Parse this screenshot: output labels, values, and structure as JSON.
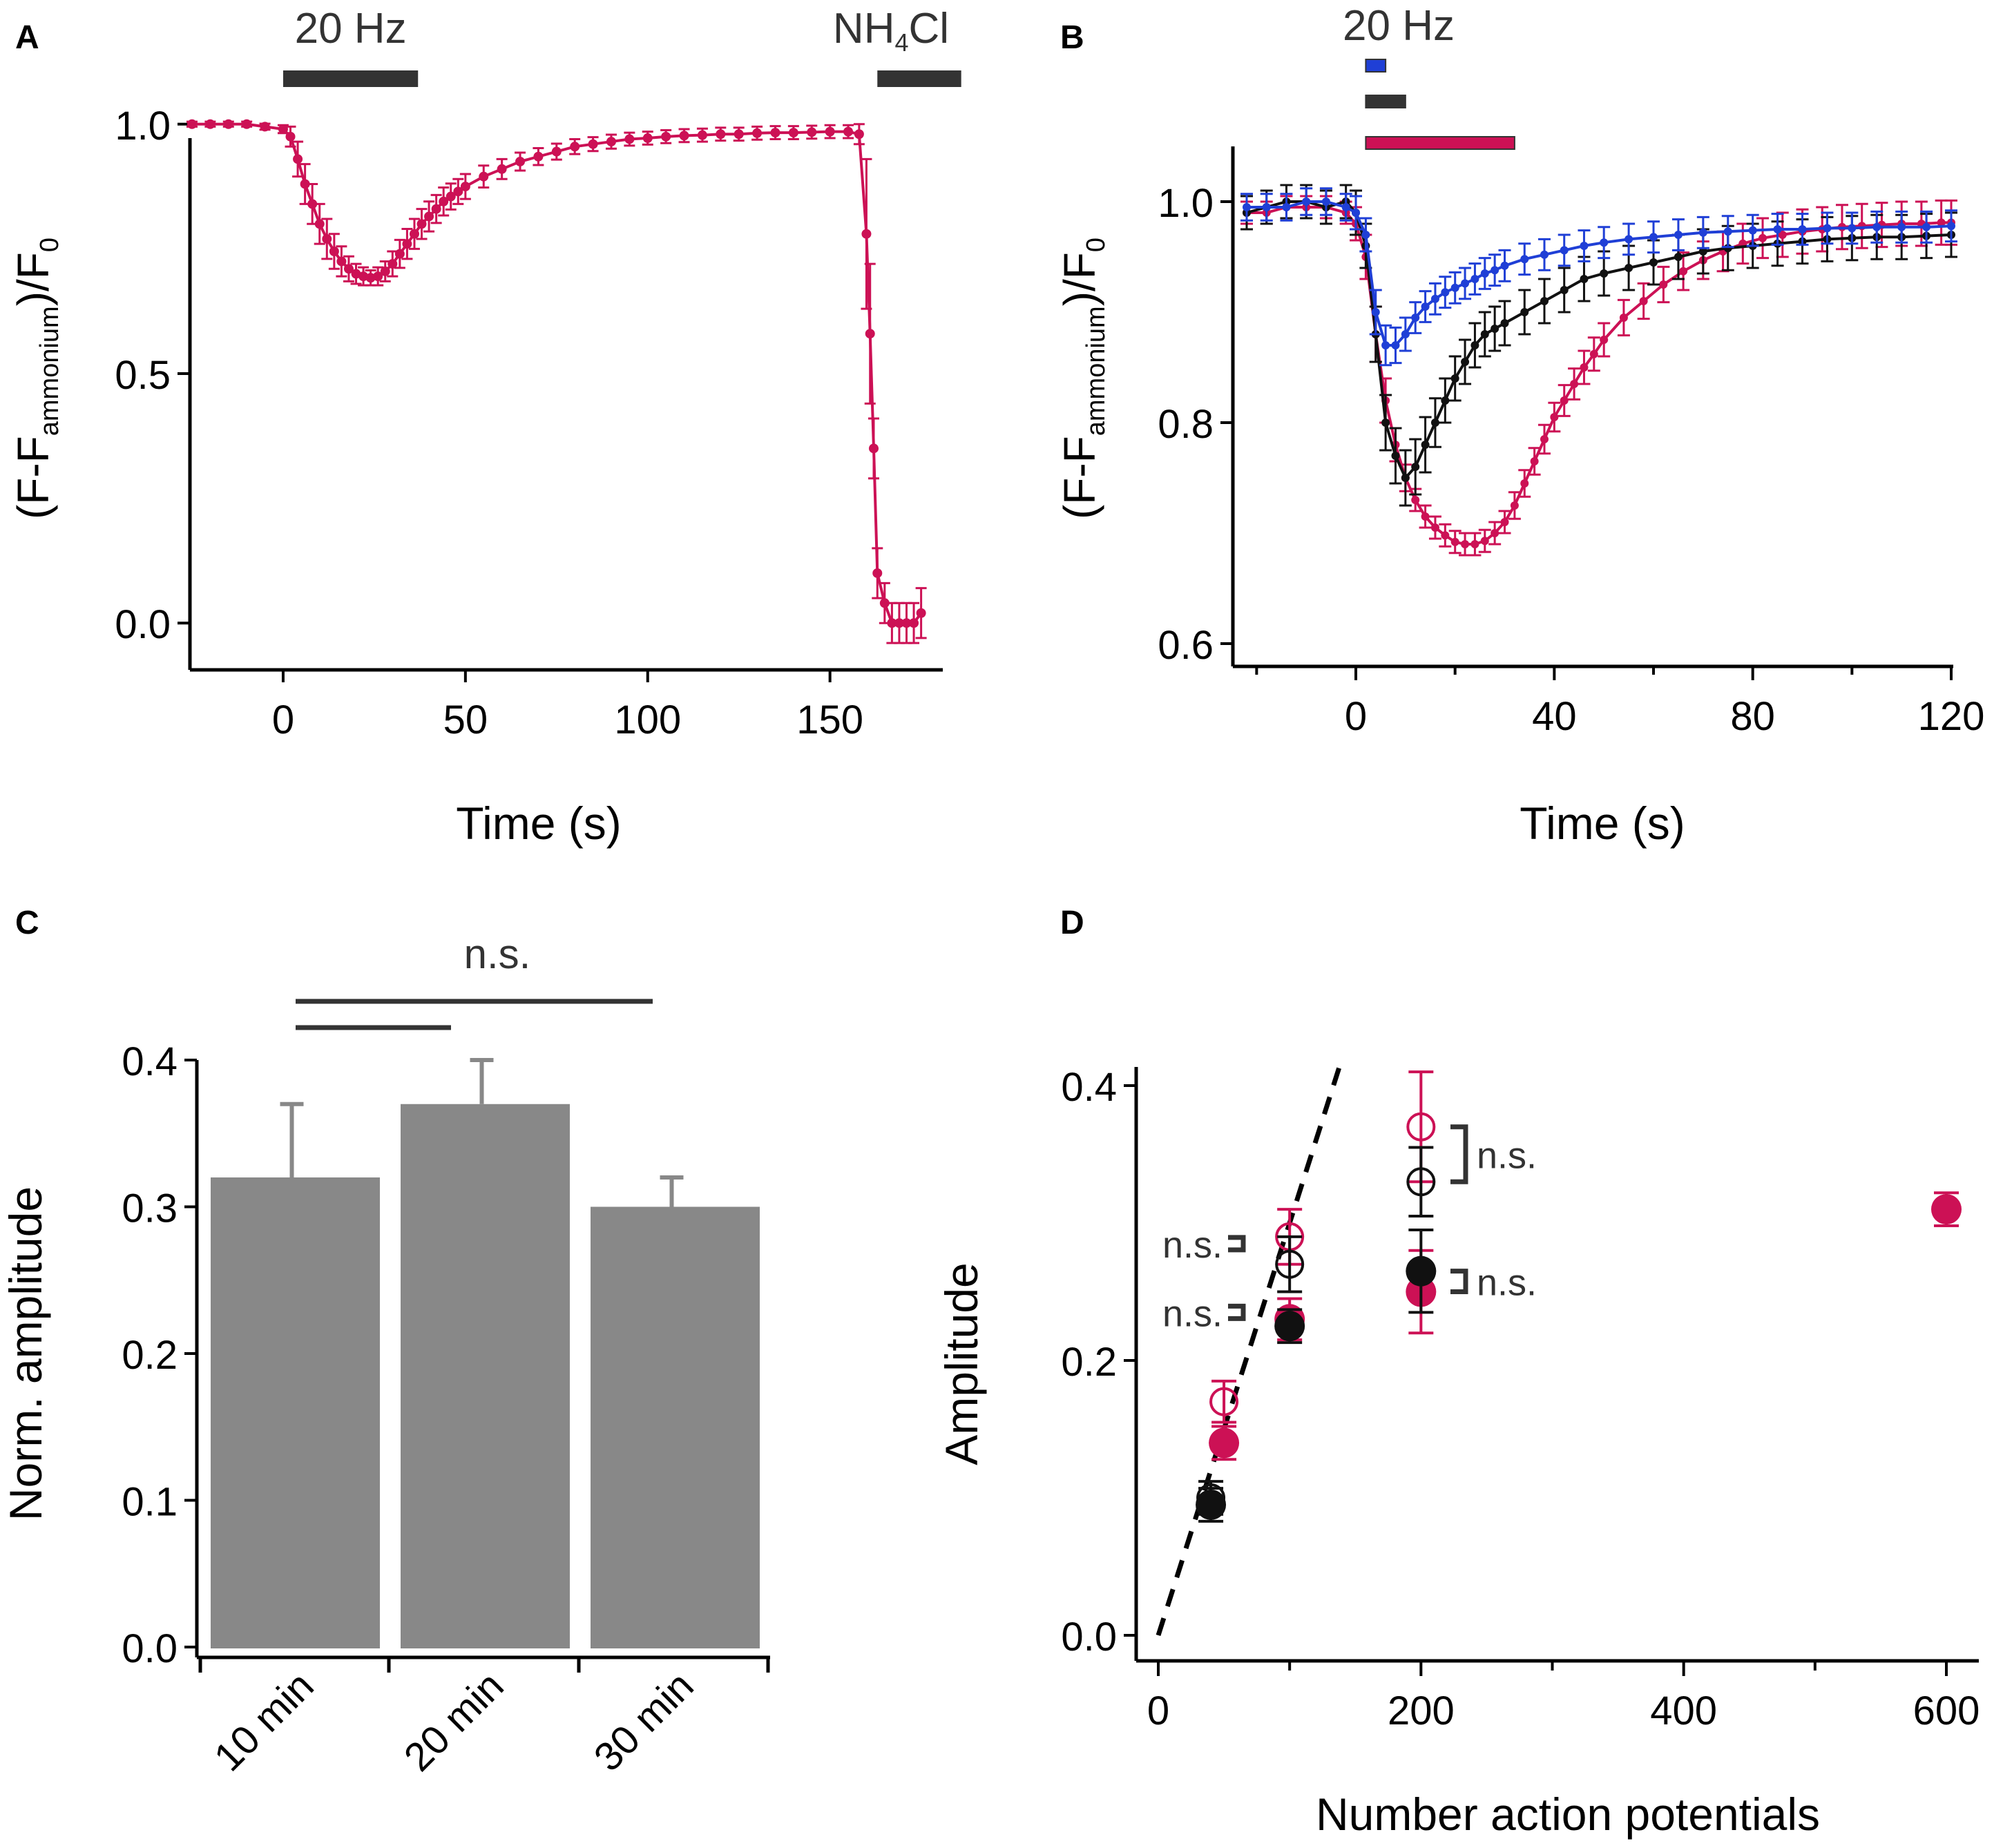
{
  "colors": {
    "magenta": "#cc1155",
    "black": "#111111",
    "blue": "#1f3fd6",
    "gray": "#888888",
    "dark": "#333333"
  },
  "chart_data": [
    {
      "panel": "A",
      "type": "line",
      "xlabel": "Time (s)",
      "ylabel": {
        "pre": "(F-F",
        "sub": "ammonium",
        "mid": ")/F",
        "sub2": "0"
      },
      "xlim": [
        -25,
        180
      ],
      "ylim": [
        -0.08,
        1.08
      ],
      "xticks": [
        0,
        50,
        100,
        150
      ],
      "yticks": [
        0.0,
        0.5,
        1.0
      ],
      "ytick_labels": [
        "0.0",
        "0.5",
        "1.0"
      ],
      "stim_bars": [
        {
          "label": "20 Hz",
          "x0": 0,
          "x1": 37,
          "color": "#333333"
        },
        {
          "label_pre": "NH",
          "label_sub": "4",
          "label_post": "Cl",
          "x0": 163,
          "x1": 186,
          "color": "#333333"
        }
      ],
      "series": [
        {
          "name": "trace",
          "color": "#cc1155",
          "x": [
            -25,
            -20,
            -15,
            -10,
            -5,
            0,
            2,
            4,
            6,
            8,
            10,
            12,
            14,
            16,
            18,
            20,
            22,
            24,
            26,
            28,
            30,
            32,
            34,
            36,
            38,
            40,
            42,
            44,
            46,
            48,
            50,
            55,
            60,
            65,
            70,
            75,
            80,
            85,
            90,
            95,
            100,
            105,
            110,
            115,
            120,
            125,
            130,
            135,
            140,
            145,
            150,
            155,
            158,
            160,
            161,
            162,
            163,
            165,
            167,
            169,
            171,
            173,
            175
          ],
          "y": [
            1.0,
            1.0,
            1.0,
            1.0,
            0.995,
            0.99,
            0.975,
            0.93,
            0.88,
            0.84,
            0.8,
            0.77,
            0.745,
            0.725,
            0.71,
            0.7,
            0.695,
            0.692,
            0.695,
            0.705,
            0.72,
            0.74,
            0.76,
            0.78,
            0.8,
            0.815,
            0.83,
            0.845,
            0.855,
            0.865,
            0.875,
            0.895,
            0.91,
            0.925,
            0.935,
            0.945,
            0.955,
            0.96,
            0.965,
            0.97,
            0.972,
            0.975,
            0.977,
            0.978,
            0.98,
            0.98,
            0.982,
            0.983,
            0.983,
            0.984,
            0.985,
            0.985,
            0.98,
            0.78,
            0.58,
            0.35,
            0.1,
            0.04,
            0.0,
            0.0,
            0.0,
            0.0,
            0.02
          ],
          "err": [
            0.005,
            0.005,
            0.005,
            0.005,
            0.006,
            0.008,
            0.02,
            0.035,
            0.04,
            0.04,
            0.04,
            0.04,
            0.035,
            0.03,
            0.025,
            0.02,
            0.018,
            0.015,
            0.018,
            0.02,
            0.025,
            0.028,
            0.03,
            0.03,
            0.03,
            0.03,
            0.028,
            0.028,
            0.026,
            0.025,
            0.025,
            0.022,
            0.02,
            0.018,
            0.017,
            0.016,
            0.015,
            0.014,
            0.014,
            0.013,
            0.013,
            0.013,
            0.013,
            0.013,
            0.013,
            0.013,
            0.013,
            0.013,
            0.013,
            0.013,
            0.013,
            0.013,
            0.02,
            0.15,
            0.14,
            0.06,
            0.05,
            0.04,
            0.04,
            0.04,
            0.04,
            0.04,
            0.05
          ]
        }
      ]
    },
    {
      "panel": "B",
      "type": "line",
      "xlabel": "Time (s)",
      "ylabel": {
        "pre": "(F-F",
        "sub": "ammonium",
        "mid": ")/F",
        "sub2": "0"
      },
      "xlim": [
        -22,
        120
      ],
      "ylim": [
        0.59,
        1.05
      ],
      "xticks": [
        0,
        40,
        80,
        120
      ],
      "yticks": [
        0.6,
        0.8,
        1.0
      ],
      "ytick_labels": [
        "0.6",
        "0.8",
        "1.0"
      ],
      "stim_label": "20 Hz",
      "stim_bars": [
        {
          "x0": 2,
          "x1": 6,
          "color": "#1f3fd6"
        },
        {
          "x0": 2,
          "x1": 10,
          "color": "#333333"
        },
        {
          "x0": 2,
          "x1": 32,
          "color": "#cc1155"
        }
      ],
      "series": [
        {
          "name": "magenta",
          "color": "#cc1155",
          "x": [
            -22,
            -18,
            -14,
            -10,
            -6,
            -2,
            0,
            2,
            4,
            6,
            8,
            10,
            12,
            14,
            16,
            18,
            20,
            22,
            24,
            26,
            28,
            30,
            32,
            34,
            36,
            38,
            40,
            42,
            44,
            46,
            48,
            50,
            54,
            58,
            62,
            66,
            70,
            74,
            78,
            82,
            86,
            90,
            94,
            98,
            102,
            106,
            110,
            114,
            118,
            120
          ],
          "y": [
            0.99,
            0.99,
            0.995,
            0.995,
            0.995,
            0.99,
            0.98,
            0.95,
            0.88,
            0.82,
            0.78,
            0.75,
            0.73,
            0.715,
            0.705,
            0.698,
            0.692,
            0.69,
            0.69,
            0.693,
            0.7,
            0.71,
            0.725,
            0.745,
            0.765,
            0.785,
            0.805,
            0.82,
            0.835,
            0.85,
            0.862,
            0.875,
            0.895,
            0.91,
            0.925,
            0.937,
            0.947,
            0.955,
            0.962,
            0.967,
            0.97,
            0.973,
            0.975,
            0.977,
            0.978,
            0.979,
            0.98,
            0.98,
            0.981,
            0.981
          ],
          "err": [
            0.01,
            0.01,
            0.01,
            0.01,
            0.01,
            0.01,
            0.015,
            0.02,
            0.025,
            0.02,
            0.015,
            0.012,
            0.01,
            0.01,
            0.01,
            0.01,
            0.01,
            0.01,
            0.01,
            0.01,
            0.01,
            0.01,
            0.012,
            0.012,
            0.012,
            0.013,
            0.013,
            0.014,
            0.014,
            0.015,
            0.015,
            0.015,
            0.016,
            0.016,
            0.016,
            0.017,
            0.017,
            0.018,
            0.018,
            0.018,
            0.02,
            0.02,
            0.02,
            0.02,
            0.02,
            0.02,
            0.02,
            0.02,
            0.02,
            0.02
          ]
        },
        {
          "name": "black",
          "color": "#111111",
          "x": [
            -22,
            -18,
            -14,
            -10,
            -6,
            -2,
            0,
            2,
            4,
            6,
            8,
            10,
            12,
            14,
            16,
            18,
            20,
            22,
            24,
            26,
            28,
            30,
            34,
            38,
            42,
            46,
            50,
            55,
            60,
            65,
            70,
            75,
            80,
            85,
            90,
            95,
            100,
            105,
            110,
            115,
            120
          ],
          "y": [
            0.99,
            0.995,
            1.0,
            1.0,
            0.995,
            1.0,
            0.99,
            0.96,
            0.88,
            0.8,
            0.77,
            0.75,
            0.76,
            0.78,
            0.8,
            0.82,
            0.84,
            0.855,
            0.87,
            0.88,
            0.885,
            0.89,
            0.9,
            0.91,
            0.92,
            0.93,
            0.935,
            0.94,
            0.945,
            0.95,
            0.955,
            0.958,
            0.96,
            0.962,
            0.964,
            0.966,
            0.967,
            0.968,
            0.968,
            0.969,
            0.97
          ],
          "err": [
            0.015,
            0.015,
            0.015,
            0.015,
            0.015,
            0.015,
            0.02,
            0.02,
            0.025,
            0.025,
            0.025,
            0.025,
            0.025,
            0.025,
            0.022,
            0.02,
            0.02,
            0.02,
            0.02,
            0.02,
            0.02,
            0.02,
            0.02,
            0.02,
            0.02,
            0.02,
            0.02,
            0.02,
            0.02,
            0.02,
            0.02,
            0.02,
            0.02,
            0.02,
            0.02,
            0.02,
            0.02,
            0.02,
            0.02,
            0.02,
            0.02
          ]
        },
        {
          "name": "blue",
          "color": "#1f3fd6",
          "x": [
            -22,
            -18,
            -14,
            -10,
            -6,
            -2,
            0,
            2,
            4,
            6,
            8,
            10,
            12,
            14,
            16,
            18,
            20,
            22,
            24,
            26,
            28,
            30,
            34,
            38,
            42,
            46,
            50,
            55,
            60,
            65,
            70,
            75,
            80,
            85,
            90,
            95,
            100,
            105,
            110,
            115,
            120
          ],
          "y": [
            0.995,
            0.995,
            0.995,
            1.0,
            1.0,
            0.995,
            0.99,
            0.97,
            0.9,
            0.87,
            0.87,
            0.88,
            0.895,
            0.905,
            0.912,
            0.918,
            0.922,
            0.926,
            0.93,
            0.935,
            0.938,
            0.942,
            0.948,
            0.952,
            0.956,
            0.96,
            0.963,
            0.966,
            0.968,
            0.97,
            0.972,
            0.973,
            0.974,
            0.975,
            0.975,
            0.976,
            0.976,
            0.977,
            0.977,
            0.977,
            0.978
          ],
          "err": [
            0.012,
            0.012,
            0.012,
            0.012,
            0.012,
            0.012,
            0.015,
            0.015,
            0.02,
            0.018,
            0.016,
            0.015,
            0.014,
            0.014,
            0.014,
            0.014,
            0.014,
            0.014,
            0.014,
            0.014,
            0.014,
            0.014,
            0.014,
            0.014,
            0.014,
            0.014,
            0.014,
            0.014,
            0.014,
            0.014,
            0.014,
            0.014,
            0.014,
            0.014,
            0.014,
            0.014,
            0.014,
            0.014,
            0.014,
            0.014,
            0.014
          ]
        }
      ]
    },
    {
      "panel": "C",
      "type": "bar",
      "ylabel": "Norm. amplitude",
      "categories": [
        "10 min",
        "20 min",
        "30 min"
      ],
      "values": [
        0.32,
        0.37,
        0.3
      ],
      "errors": [
        0.05,
        0.03,
        0.02
      ],
      "ylim": [
        0,
        0.4
      ],
      "yticks": [
        0.0,
        0.1,
        0.2,
        0.3,
        0.4
      ],
      "ytick_labels": [
        "0.0",
        "0.1",
        "0.2",
        "0.3",
        "0.4"
      ],
      "significance": {
        "label": "n.s.",
        "comparisons": [
          [
            0,
            2
          ],
          [
            0,
            1
          ]
        ]
      },
      "bar_color": "#888888"
    },
    {
      "panel": "D",
      "type": "scatter",
      "xlabel": "Number action potentials",
      "ylabel": "Amplitude",
      "xlim": [
        -10,
        630
      ],
      "ylim": [
        -0.02,
        0.41
      ],
      "xticks": [
        0,
        200,
        400,
        600
      ],
      "xtick_labels": [
        "0",
        "200",
        "400",
        "600"
      ],
      "xticks_minor": [
        100,
        300,
        500
      ],
      "yticks": [
        0.0,
        0.2,
        0.4
      ],
      "ytick_labels": [
        "0.0",
        "0.2",
        "0.4"
      ],
      "fit_line": {
        "slope": 0.003,
        "intercept": 0.0,
        "x0": 0,
        "x1": 140
      },
      "series": [
        {
          "name": "magenta-open",
          "color": "#cc1155",
          "filled": false,
          "points": [
            {
              "x": 50,
              "y": 0.17,
              "err": 0.015
            },
            {
              "x": 100,
              "y": 0.29,
              "err": 0.02
            },
            {
              "x": 200,
              "y": 0.37,
              "err": 0.04
            }
          ]
        },
        {
          "name": "black-open",
          "color": "#111111",
          "filled": false,
          "points": [
            {
              "x": 40,
              "y": 0.1,
              "err": 0.012
            },
            {
              "x": 100,
              "y": 0.27,
              "err": 0.02
            },
            {
              "x": 200,
              "y": 0.33,
              "err": 0.025
            }
          ]
        },
        {
          "name": "magenta-filled",
          "color": "#cc1155",
          "filled": true,
          "points": [
            {
              "x": 50,
              "y": 0.14,
              "err": 0.012
            },
            {
              "x": 100,
              "y": 0.23,
              "err": 0.015
            },
            {
              "x": 200,
              "y": 0.25,
              "err": 0.03
            },
            {
              "x": 600,
              "y": 0.31,
              "err": 0.012
            }
          ]
        },
        {
          "name": "black-filled",
          "color": "#111111",
          "filled": true,
          "points": [
            {
              "x": 40,
              "y": 0.095,
              "err": 0.012
            },
            {
              "x": 100,
              "y": 0.225,
              "err": 0.012
            },
            {
              "x": 200,
              "y": 0.265,
              "err": 0.03
            }
          ]
        }
      ],
      "annotations": [
        {
          "text": "n.s.",
          "side": "left",
          "y0": 0.285,
          "y1": 0.285,
          "x": 100
        },
        {
          "text": "n.s.",
          "side": "left",
          "y0": 0.235,
          "y1": 0.235,
          "x": 100
        },
        {
          "text": "n.s.",
          "side": "right",
          "y0": 0.37,
          "y1": 0.33,
          "x": 200
        },
        {
          "text": "n.s.",
          "side": "right",
          "y0": 0.265,
          "y1": 0.25,
          "x": 200
        }
      ]
    }
  ]
}
